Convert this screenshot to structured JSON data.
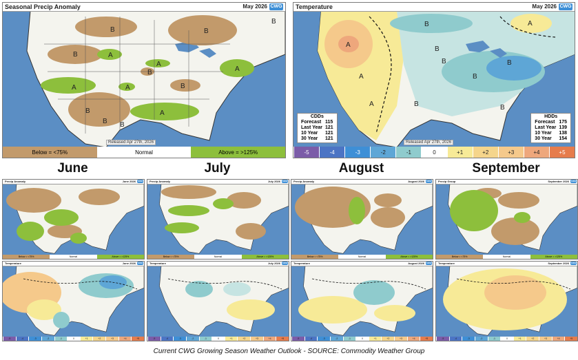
{
  "colors": {
    "ocean": "#5b8ec4",
    "land": "#f4f4ee",
    "dry": "#c29a6b",
    "wet": "#8dbf3c",
    "warm1": "#f7ea97",
    "warm2": "#f5c98b",
    "warm3": "#eea77c",
    "cool1": "#c6e4e2",
    "cool2": "#8fcbcd",
    "cool3": "#5ea6d6"
  },
  "precip_main": {
    "title": "Seasonal Precip Anomaly",
    "date": "May 2026",
    "logo": "CWG",
    "released": "Released Apr 27th, 2026",
    "legend": {
      "below": "Below = <75%",
      "normal": "Normal",
      "above": "Above = >125%"
    },
    "labels": [
      "B",
      "B",
      "B",
      "B",
      "B",
      "A",
      "A",
      "A",
      "A",
      "A",
      "A",
      "B",
      "B",
      "B",
      "B"
    ]
  },
  "temp_main": {
    "title": "Temperature",
    "date": "May 2026",
    "logo": "CWG",
    "released": "Released Apr 27th, 2026",
    "labels": [
      "A",
      "A",
      "A",
      "B",
      "B",
      "B",
      "B",
      "B",
      "B",
      "A",
      "B"
    ],
    "cdd": {
      "header": "CDDs",
      "rows": [
        [
          "Forecast",
          "115"
        ],
        [
          "Last Year",
          "121"
        ],
        [
          "10 Year",
          "121"
        ],
        [
          "30 Year",
          "121"
        ]
      ]
    },
    "hdd": {
      "header": "HDDs",
      "rows": [
        [
          "Forecast",
          "175"
        ],
        [
          "Last Year",
          "139"
        ],
        [
          "10 Year",
          "138"
        ],
        [
          "30 Year",
          "154"
        ]
      ]
    },
    "scale": [
      "-5",
      "-4",
      "-3",
      "-2",
      "-1",
      "0",
      "+1",
      "+2",
      "+3",
      "+4",
      "+5"
    ]
  },
  "months": [
    {
      "name": "June",
      "precip_title": "Precip Anomaly",
      "temp_title": "Temperature",
      "date": "June 2026"
    },
    {
      "name": "July",
      "precip_title": "Precip Anomaly",
      "temp_title": "Temperature",
      "date": "July 2026"
    },
    {
      "name": "August",
      "precip_title": "Precip Anomaly",
      "temp_title": "Temperature",
      "date": "August 2026"
    },
    {
      "name": "September",
      "precip_title": "Precip Group",
      "temp_title": "Temperature",
      "date": "September 2026"
    }
  ],
  "small_legend": {
    "below": "Below = <75%",
    "normal": "Normal",
    "above": "Above = >125%"
  },
  "small_scale": [
    "-5",
    "-4",
    "-3",
    "-2",
    "-1",
    "0",
    "+1",
    "+2",
    "+3",
    "+4",
    "+5"
  ],
  "caption": "Current CWG Growing Season Weather Outlook - SOURCE: Commodity Weather Group"
}
